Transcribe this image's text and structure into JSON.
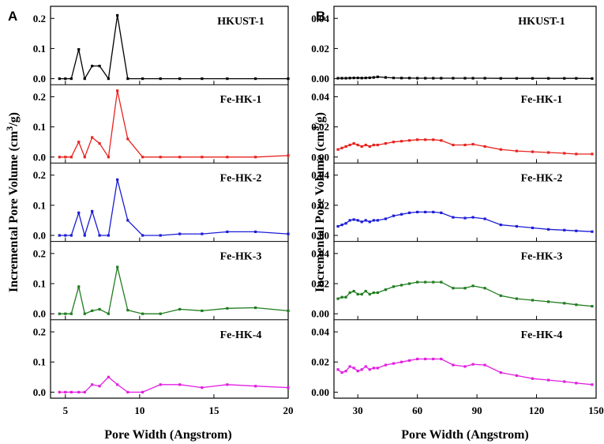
{
  "chart_data": [
    {
      "type": "line",
      "title": "A",
      "xlabel": "Pore Width (Angstrom)",
      "ylabel": "Incremental Pore Volume (cm3/g)",
      "xlim": [
        4,
        20
      ],
      "xticks": [
        5,
        10,
        15,
        20
      ],
      "ylim": [
        -0.02,
        0.24
      ],
      "yticks": [
        0.0,
        0.1,
        0.2
      ],
      "ytick_labels": [
        "0.0",
        "0.1",
        "0.2"
      ],
      "series": [
        {
          "name": "HKUST-1",
          "color": "#000000",
          "x": [
            4.6,
            5.0,
            5.4,
            5.9,
            6.3,
            6.8,
            7.3,
            7.9,
            8.5,
            9.2,
            10.2,
            11.4,
            12.7,
            14.2,
            15.9,
            17.8,
            20.0
          ],
          "y": [
            0.0,
            0.0,
            0.0,
            0.097,
            0.0,
            0.042,
            0.042,
            0.0,
            0.21,
            0.0,
            0.0,
            0.0,
            0.0,
            0.0,
            0.0,
            0.0,
            0.0
          ]
        },
        {
          "name": "Fe-HK-1",
          "color": "#e8231f",
          "x": [
            4.6,
            5.0,
            5.4,
            5.9,
            6.3,
            6.8,
            7.3,
            7.9,
            8.5,
            9.2,
            10.2,
            11.4,
            12.7,
            14.2,
            15.9,
            17.8,
            20.0
          ],
          "y": [
            0.0,
            0.0,
            0.0,
            0.05,
            0.0,
            0.065,
            0.045,
            0.0,
            0.22,
            0.06,
            0.0,
            0.0,
            0.0,
            0.0,
            0.0,
            0.0,
            0.005
          ]
        },
        {
          "name": "Fe-HK-2",
          "color": "#1c1cd6",
          "x": [
            4.6,
            5.0,
            5.4,
            5.9,
            6.3,
            6.8,
            7.3,
            7.9,
            8.5,
            9.2,
            10.2,
            11.4,
            12.7,
            14.2,
            15.9,
            17.8,
            20.0
          ],
          "y": [
            0.0,
            0.0,
            0.0,
            0.075,
            0.0,
            0.08,
            0.0,
            0.0,
            0.185,
            0.05,
            0.0,
            0.0,
            0.005,
            0.005,
            0.012,
            0.012,
            0.005
          ]
        },
        {
          "name": "Fe-HK-3",
          "color": "#1f7d1f",
          "x": [
            4.6,
            5.0,
            5.4,
            5.9,
            6.3,
            6.8,
            7.3,
            7.9,
            8.5,
            9.2,
            10.2,
            11.4,
            12.7,
            14.2,
            15.9,
            17.8,
            20.0
          ],
          "y": [
            0.0,
            0.0,
            0.0,
            0.09,
            0.0,
            0.01,
            0.015,
            0.0,
            0.155,
            0.012,
            0.0,
            0.0,
            0.015,
            0.01,
            0.018,
            0.02,
            0.01
          ]
        },
        {
          "name": "Fe-HK-4",
          "color": "#e21ee2",
          "x": [
            4.6,
            5.0,
            5.4,
            5.9,
            6.3,
            6.8,
            7.3,
            7.9,
            8.5,
            9.2,
            10.2,
            11.4,
            12.7,
            14.2,
            15.9,
            17.8,
            20.0
          ],
          "y": [
            0.0,
            0.0,
            0.0,
            0.0,
            0.0,
            0.025,
            0.02,
            0.05,
            0.025,
            0.0,
            0.0,
            0.025,
            0.025,
            0.015,
            0.025,
            0.02,
            0.015
          ]
        }
      ]
    },
    {
      "type": "line",
      "title": "B",
      "xlabel": "Pore Width (Angstrom)",
      "ylabel": "Incremental Pore Volume (cm3/g)",
      "xlim": [
        18,
        150
      ],
      "xticks": [
        30,
        60,
        90,
        120,
        150
      ],
      "ylim": [
        -0.004,
        0.048
      ],
      "yticks": [
        0.0,
        0.02,
        0.04
      ],
      "ytick_labels": [
        "0.00",
        "0.02",
        "0.04"
      ],
      "series": [
        {
          "name": "HKUST-1",
          "color": "#000000",
          "x": [
            20,
            22,
            24,
            26,
            28,
            30,
            32,
            34,
            36,
            38,
            40,
            44,
            48,
            52,
            56,
            60,
            64,
            68,
            72,
            78,
            84,
            88,
            94,
            102,
            110,
            118,
            126,
            134,
            140,
            148
          ],
          "y": [
            0.0003,
            0.0003,
            0.0003,
            0.0004,
            0.0005,
            0.0005,
            0.0004,
            0.0005,
            0.0006,
            0.0008,
            0.0012,
            0.0008,
            0.0005,
            0.0004,
            0.0004,
            0.0003,
            0.0003,
            0.0003,
            0.0003,
            0.0003,
            0.0003,
            0.0003,
            0.0003,
            0.0002,
            0.0002,
            0.0002,
            0.0002,
            0.0002,
            0.0002,
            0.0001
          ]
        },
        {
          "name": "Fe-HK-1",
          "color": "#e8231f",
          "x": [
            20,
            22,
            24,
            26,
            28,
            30,
            32,
            34,
            36,
            38,
            40,
            44,
            48,
            52,
            56,
            60,
            64,
            68,
            72,
            78,
            84,
            88,
            94,
            102,
            110,
            118,
            126,
            134,
            140,
            148
          ],
          "y": [
            0.005,
            0.006,
            0.007,
            0.008,
            0.009,
            0.008,
            0.007,
            0.008,
            0.007,
            0.008,
            0.008,
            0.009,
            0.01,
            0.0105,
            0.011,
            0.0115,
            0.0115,
            0.0115,
            0.011,
            0.008,
            0.008,
            0.0085,
            0.007,
            0.005,
            0.004,
            0.0035,
            0.003,
            0.0025,
            0.002,
            0.002
          ]
        },
        {
          "name": "Fe-HK-2",
          "color": "#1c1cd6",
          "x": [
            20,
            22,
            24,
            26,
            28,
            30,
            32,
            34,
            36,
            38,
            40,
            44,
            48,
            52,
            56,
            60,
            64,
            68,
            72,
            78,
            84,
            88,
            94,
            102,
            110,
            118,
            126,
            134,
            140,
            148
          ],
          "y": [
            0.006,
            0.007,
            0.008,
            0.01,
            0.0105,
            0.01,
            0.009,
            0.01,
            0.009,
            0.01,
            0.01,
            0.011,
            0.013,
            0.014,
            0.015,
            0.0155,
            0.0155,
            0.0155,
            0.015,
            0.012,
            0.0115,
            0.012,
            0.011,
            0.007,
            0.006,
            0.005,
            0.004,
            0.0035,
            0.003,
            0.0025
          ]
        },
        {
          "name": "Fe-HK-3",
          "color": "#1f7d1f",
          "x": [
            20,
            22,
            24,
            26,
            28,
            30,
            32,
            34,
            36,
            38,
            40,
            44,
            48,
            52,
            56,
            60,
            64,
            68,
            72,
            78,
            84,
            88,
            94,
            102,
            110,
            118,
            126,
            134,
            140,
            148
          ],
          "y": [
            0.01,
            0.011,
            0.011,
            0.014,
            0.015,
            0.013,
            0.013,
            0.015,
            0.013,
            0.014,
            0.014,
            0.016,
            0.018,
            0.019,
            0.02,
            0.021,
            0.021,
            0.021,
            0.021,
            0.017,
            0.017,
            0.0185,
            0.017,
            0.012,
            0.01,
            0.009,
            0.008,
            0.007,
            0.006,
            0.005
          ]
        },
        {
          "name": "Fe-HK-4",
          "color": "#e21ee2",
          "x": [
            20,
            22,
            24,
            26,
            28,
            30,
            32,
            34,
            36,
            38,
            40,
            44,
            48,
            52,
            56,
            60,
            64,
            68,
            72,
            78,
            84,
            88,
            94,
            102,
            110,
            118,
            126,
            134,
            140,
            148
          ],
          "y": [
            0.015,
            0.013,
            0.014,
            0.017,
            0.016,
            0.014,
            0.015,
            0.017,
            0.015,
            0.016,
            0.016,
            0.018,
            0.019,
            0.02,
            0.021,
            0.022,
            0.022,
            0.022,
            0.022,
            0.018,
            0.017,
            0.0185,
            0.018,
            0.013,
            0.011,
            0.009,
            0.008,
            0.007,
            0.006,
            0.005
          ]
        }
      ]
    }
  ]
}
